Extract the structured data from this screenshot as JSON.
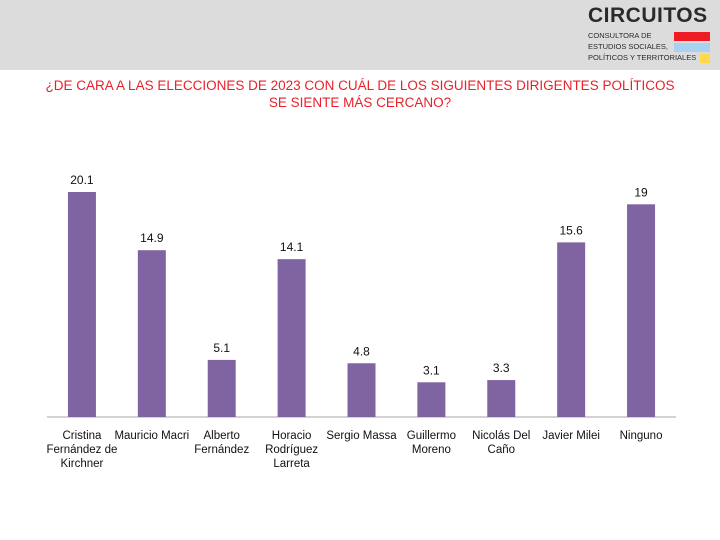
{
  "header": {
    "logo_title": "CIRCUITOS",
    "logo_line1": "CONSULTORA DE",
    "logo_line2": "ESTUDIOS SOCIALES,",
    "logo_line3": "POLÍTICOS Y TERRITORIALES",
    "stripe_colors": [
      "#ee1c25",
      "#a9d2f2",
      "#ffd94a"
    ]
  },
  "title_line1": "¿DE CARA A LAS ELECCIONES DE 2023 CON CUÁL DE LOS SIGUIENTES DIRIGENTES POLÍTICOS",
  "title_line2": "SE SIENTE MÁS CERCANO?",
  "chart_data": {
    "type": "bar",
    "categories": [
      "Cristina Fernández de Kirchner",
      "Mauricio Macri",
      "Alberto Fernández",
      "Horacio Rodríguez Larreta",
      "Sergio Massa",
      "Guillermo Moreno",
      "Nicolás Del Caño",
      "Javier Milei",
      "Ninguno"
    ],
    "values": [
      20.1,
      14.9,
      5.1,
      14.1,
      4.8,
      3.1,
      3.3,
      15.6,
      19
    ],
    "value_labels": [
      "20.1",
      "14.9",
      "5.1",
      "14.1",
      "4.8",
      "3.1",
      "3.3",
      "15.6",
      "19"
    ],
    "ylim": [
      0,
      20.1
    ],
    "bar_color": "#8064a2",
    "grid": false,
    "legend": "none"
  }
}
